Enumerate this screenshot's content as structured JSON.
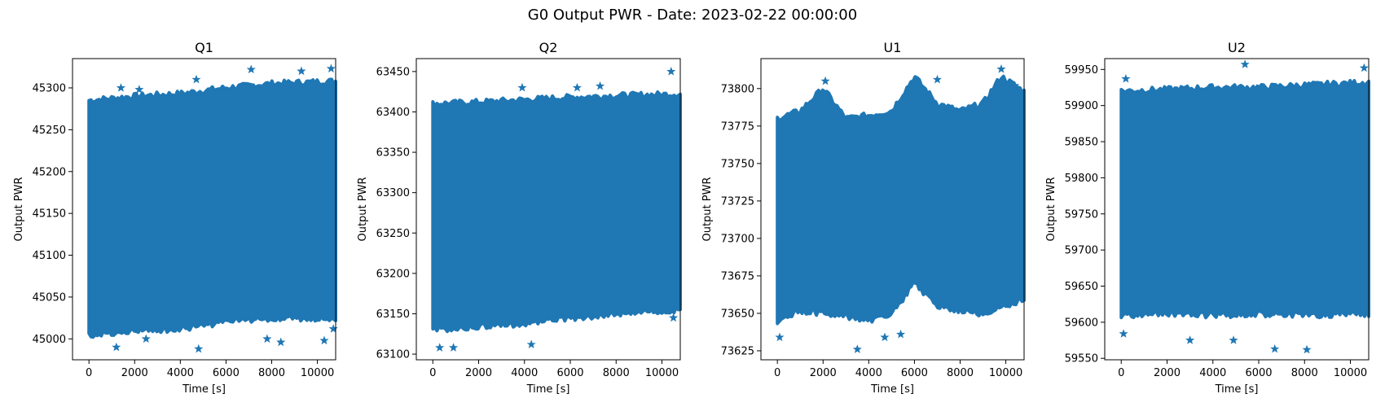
{
  "figure": {
    "title": "G0 Output PWR - Date: 2023-02-22 00:00:00",
    "marker_color": "#1f77b4"
  },
  "chart_data": [
    {
      "type": "scatter",
      "title": "Q1",
      "xlabel": "Time [s]",
      "ylabel": "Output PWR",
      "xlim": [
        -720,
        10800
      ],
      "ylim": [
        44975,
        45335
      ],
      "xticks": [
        0,
        2000,
        4000,
        6000,
        8000,
        10000
      ],
      "yticks": [
        45000,
        45050,
        45100,
        45150,
        45200,
        45250,
        45300
      ],
      "x_range": [
        0,
        10800
      ],
      "band_upper": [
        [
          0,
          45285
        ],
        [
          2000,
          45290
        ],
        [
          4000,
          45293
        ],
        [
          6000,
          45300
        ],
        [
          8000,
          45305
        ],
        [
          10800,
          45308
        ]
      ],
      "band_lower": [
        [
          0,
          45005
        ],
        [
          2000,
          45010
        ],
        [
          4000,
          45012
        ],
        [
          6000,
          45020
        ],
        [
          8000,
          45025
        ],
        [
          10800,
          45025
        ]
      ],
      "outliers": [
        [
          1200,
          44990
        ],
        [
          2500,
          45000
        ],
        [
          4800,
          44988
        ],
        [
          7800,
          45000
        ],
        [
          8400,
          44996
        ],
        [
          10300,
          44998
        ],
        [
          10700,
          45012
        ],
        [
          1400,
          45300
        ],
        [
          2200,
          45298
        ],
        [
          4700,
          45310
        ],
        [
          7100,
          45322
        ],
        [
          9300,
          45320
        ],
        [
          10600,
          45323
        ]
      ],
      "grid": false
    },
    {
      "type": "scatter",
      "title": "Q2",
      "xlabel": "Time [s]",
      "ylabel": "Output PWR",
      "xlim": [
        -720,
        10800
      ],
      "ylim": [
        63093,
        63466
      ],
      "xticks": [
        0,
        2000,
        4000,
        6000,
        8000,
        10000
      ],
      "yticks": [
        63100,
        63150,
        63200,
        63250,
        63300,
        63350,
        63400,
        63450
      ],
      "x_range": [
        0,
        10800
      ],
      "band_upper": [
        [
          0,
          63410
        ],
        [
          2000,
          63412
        ],
        [
          4000,
          63415
        ],
        [
          6000,
          63418
        ],
        [
          8000,
          63420
        ],
        [
          10800,
          63422
        ]
      ],
      "band_lower": [
        [
          0,
          63130
        ],
        [
          2000,
          63135
        ],
        [
          4000,
          63138
        ],
        [
          6000,
          63145
        ],
        [
          8000,
          63150
        ],
        [
          10800,
          63155
        ]
      ],
      "outliers": [
        [
          300,
          63108
        ],
        [
          900,
          63108
        ],
        [
          4300,
          63112
        ],
        [
          10500,
          63145
        ],
        [
          3900,
          63430
        ],
        [
          6300,
          63430
        ],
        [
          7300,
          63432
        ],
        [
          10400,
          63450
        ]
      ],
      "grid": false
    },
    {
      "type": "scatter",
      "title": "U1",
      "xlabel": "Time [s]",
      "ylabel": "Output PWR",
      "xlim": [
        -720,
        10800
      ],
      "ylim": [
        73619,
        73820
      ],
      "xticks": [
        0,
        2000,
        4000,
        6000,
        8000,
        10000
      ],
      "yticks": [
        73625,
        73650,
        73675,
        73700,
        73725,
        73750,
        73775,
        73800
      ],
      "x_range": [
        0,
        10800
      ],
      "band_upper": [
        [
          0,
          73780
        ],
        [
          1000,
          73785
        ],
        [
          2000,
          73800
        ],
        [
          3000,
          73780
        ],
        [
          4000,
          73782
        ],
        [
          5000,
          73785
        ],
        [
          6000,
          73808
        ],
        [
          7000,
          73790
        ],
        [
          8000,
          73785
        ],
        [
          9000,
          73790
        ],
        [
          9800,
          73808
        ],
        [
          10800,
          73798
        ]
      ],
      "band_lower": [
        [
          0,
          73645
        ],
        [
          1000,
          73652
        ],
        [
          2000,
          73650
        ],
        [
          3000,
          73648
        ],
        [
          4000,
          73645
        ],
        [
          5000,
          73650
        ],
        [
          6000,
          73670
        ],
        [
          7000,
          73655
        ],
        [
          8000,
          73652
        ],
        [
          9000,
          73650
        ],
        [
          10000,
          73655
        ],
        [
          10800,
          73660
        ]
      ],
      "outliers": [
        [
          100,
          73634
        ],
        [
          3500,
          73626
        ],
        [
          4700,
          73634
        ],
        [
          5400,
          73636
        ],
        [
          9800,
          73813
        ],
        [
          2100,
          73805
        ],
        [
          7000,
          73806
        ],
        [
          10400,
          73802
        ]
      ],
      "grid": false
    },
    {
      "type": "scatter",
      "title": "U2",
      "xlabel": "Time [s]",
      "ylabel": "Output PWR",
      "xlim": [
        -720,
        10800
      ],
      "ylim": [
        59548,
        59965
      ],
      "xticks": [
        0,
        2000,
        4000,
        6000,
        8000,
        10000
      ],
      "yticks": [
        59550,
        59600,
        59650,
        59700,
        59750,
        59800,
        59850,
        59900,
        59950
      ],
      "x_range": [
        0,
        10800
      ],
      "band_upper": [
        [
          0,
          59920
        ],
        [
          2000,
          59922
        ],
        [
          4000,
          59925
        ],
        [
          6000,
          59925
        ],
        [
          8000,
          59928
        ],
        [
          10800,
          59932
        ]
      ],
      "band_lower": [
        [
          0,
          59610
        ],
        [
          2000,
          59612
        ],
        [
          4000,
          59610
        ],
        [
          6000,
          59612
        ],
        [
          8000,
          59610
        ],
        [
          10800,
          59612
        ]
      ],
      "outliers": [
        [
          3000,
          59575
        ],
        [
          4900,
          59575
        ],
        [
          6700,
          59563
        ],
        [
          8100,
          59562
        ],
        [
          100,
          59584
        ],
        [
          5400,
          59957
        ],
        [
          10600,
          59952
        ],
        [
          200,
          59937
        ]
      ],
      "grid": false
    }
  ]
}
